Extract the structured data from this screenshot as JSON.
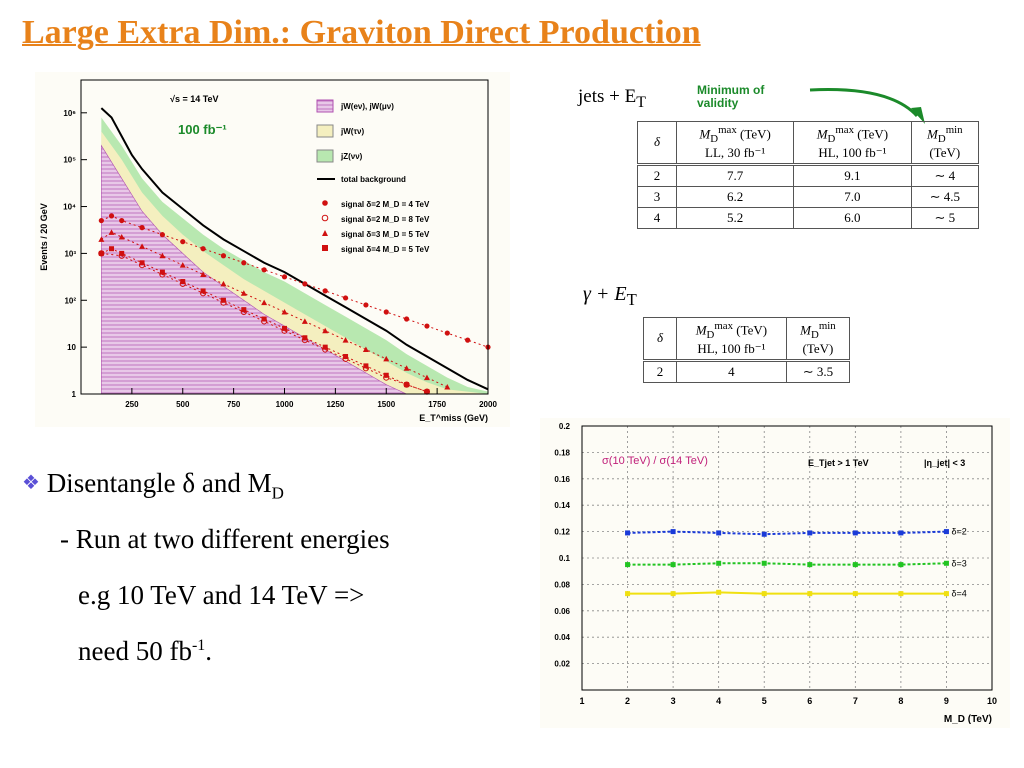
{
  "slide": {
    "title": "Large Extra Dim.: Graviton Direct Production",
    "bullets": {
      "bullet_main": "Disentangle δ and M",
      "bullet_main_sub": "D",
      "line2": "- Run at two different energies",
      "line3": "e.g 10 TeV and 14 TeV =>",
      "line4_pre": "need 50 fb",
      "line4_sup": "-1",
      "line4_post": "."
    },
    "jets_label": "jets + E",
    "jets_label_sub": "T",
    "validity_note": [
      "Minimum of",
      "validity"
    ],
    "table_jets": {
      "headers": [
        {
          "main": "δ",
          "sub": ""
        },
        {
          "main": "M",
          "sup": "max",
          "sub": "D",
          "unit": "(TeV)",
          "line2": "LL, 30 fb⁻¹"
        },
        {
          "main": "M",
          "sup": "max",
          "sub": "D",
          "unit": "(TeV)",
          "line2": "HL, 100 fb⁻¹"
        },
        {
          "main": "M",
          "sup": "min",
          "sub": "D",
          "unit": "",
          "line2": "(TeV)"
        }
      ],
      "rows": [
        [
          "2",
          "7.7",
          "9.1",
          "∼ 4"
        ],
        [
          "3",
          "6.2",
          "7.0",
          "∼ 4.5"
        ],
        [
          "4",
          "5.2",
          "6.0",
          "∼ 5"
        ]
      ]
    },
    "gamma_label": "γ + E",
    "gamma_label_sub": "T",
    "table_gamma": {
      "headers": [
        {
          "main": "δ"
        },
        {
          "main": "M",
          "sup": "max",
          "sub": "D",
          "unit": "(TeV)",
          "line2": "HL, 100 fb⁻¹"
        },
        {
          "main": "M",
          "sup": "min",
          "sub": "D",
          "unit": "",
          "line2": "(TeV)"
        }
      ],
      "rows": [
        [
          "2",
          "4",
          "∼ 3.5"
        ]
      ]
    }
  },
  "chart_data": [
    {
      "type": "line",
      "title": "",
      "annotations": [
        "√s = 14 TeV",
        "100 fb⁻¹"
      ],
      "xlabel": "E_T^miss (GeV)",
      "ylabel": "Events / 20 GeV",
      "xlim": [
        0,
        2000
      ],
      "ylim_log10": [
        0,
        6.7
      ],
      "log_y": true,
      "x_ticks": [
        250,
        500,
        750,
        1000,
        1250,
        1500,
        1750,
        2000
      ],
      "y_tick_labels": [
        "1",
        "10",
        "10²",
        "10³",
        "10⁴",
        "10⁵",
        "10⁶"
      ],
      "legend_position": "top-right",
      "legend": [
        {
          "label": "jW(eν), jW(μν)",
          "kind": "hatch",
          "color": "#c878c8"
        },
        {
          "label": "jW(τν)",
          "kind": "box",
          "color": "#f4efbf"
        },
        {
          "label": "jZ(νν)",
          "kind": "box",
          "color": "#b8e8b0"
        },
        {
          "label": "total background",
          "kind": "line",
          "color": "#000000"
        },
        {
          "label": "signal δ=2  M_D = 4 TeV",
          "kind": "dot",
          "color": "#d01010"
        },
        {
          "label": "signal δ=2  M_D = 8 TeV",
          "kind": "circle",
          "color": "#d01010"
        },
        {
          "label": "signal δ=3  M_D = 5 TeV",
          "kind": "triangle",
          "color": "#d01010"
        },
        {
          "label": "signal δ=4  M_D = 5 TeV",
          "kind": "square",
          "color": "#d01010"
        }
      ],
      "series": [
        {
          "name": "total background",
          "x": [
            100,
            150,
            200,
            250,
            300,
            400,
            500,
            600,
            700,
            800,
            900,
            1000,
            1100,
            1200,
            1300,
            1400,
            1500,
            1600,
            1700,
            1800,
            1900,
            2000
          ],
          "log10_y": [
            6.1,
            5.9,
            5.5,
            5.1,
            4.8,
            4.3,
            3.95,
            3.6,
            3.3,
            3.05,
            2.8,
            2.6,
            2.35,
            2.1,
            1.85,
            1.6,
            1.35,
            1.05,
            0.8,
            0.55,
            0.3,
            0.1
          ]
        },
        {
          "name": "jZ(νν)",
          "x": [
            100,
            200,
            300,
            400,
            500,
            600,
            700,
            800,
            900,
            1000,
            1100,
            1200,
            1300,
            1400,
            1500,
            1600,
            1700,
            1800,
            1900,
            2000
          ],
          "log10_y": [
            5.9,
            5.3,
            4.6,
            4.1,
            3.75,
            3.4,
            3.1,
            2.85,
            2.6,
            2.4,
            2.15,
            1.9,
            1.65,
            1.4,
            1.15,
            0.85,
            0.6,
            0.35,
            0.15,
            0.05
          ]
        },
        {
          "name": "jW(τν)",
          "x": [
            100,
            200,
            300,
            400,
            500,
            600,
            700,
            800,
            900,
            1000,
            1100,
            1200,
            1300,
            1400,
            1500,
            1600,
            1700,
            1800,
            1900,
            2000
          ],
          "log10_y": [
            5.6,
            5.0,
            4.3,
            3.8,
            3.4,
            3.05,
            2.75,
            2.45,
            2.2,
            1.95,
            1.7,
            1.45,
            1.2,
            0.95,
            0.7,
            0.45,
            0.25,
            0.1,
            0.05,
            0.0
          ]
        },
        {
          "name": "jW(eν), jW(μν)",
          "x": [
            100,
            200,
            300,
            400,
            500,
            600,
            700,
            800,
            900,
            1000,
            1100,
            1200,
            1300,
            1400,
            1500,
            1600
          ],
          "log10_y": [
            5.3,
            4.6,
            3.9,
            3.4,
            3.0,
            2.6,
            2.3,
            2.0,
            1.7,
            1.45,
            1.2,
            0.95,
            0.7,
            0.45,
            0.2,
            0.0
          ]
        },
        {
          "name": "signal δ=2  M_D = 4 TeV",
          "x": [
            100,
            150,
            200,
            300,
            400,
            500,
            600,
            700,
            800,
            900,
            1000,
            1100,
            1200,
            1300,
            1400,
            1500,
            1600,
            1700,
            1800,
            1900,
            2000
          ],
          "log10_y": [
            3.7,
            3.8,
            3.7,
            3.55,
            3.4,
            3.25,
            3.1,
            2.95,
            2.8,
            2.65,
            2.5,
            2.35,
            2.2,
            2.05,
            1.9,
            1.75,
            1.6,
            1.45,
            1.3,
            1.15,
            1.0
          ]
        },
        {
          "name": "signal δ=2  M_D = 8 TeV",
          "x": [
            100,
            200,
            300,
            400,
            500,
            600,
            700,
            800,
            900,
            1000,
            1100,
            1200,
            1300,
            1400,
            1500,
            1600,
            1700
          ],
          "log10_y": [
            3.0,
            2.95,
            2.75,
            2.55,
            2.35,
            2.15,
            1.95,
            1.75,
            1.55,
            1.35,
            1.15,
            0.95,
            0.75,
            0.55,
            0.35,
            0.2,
            0.05
          ]
        },
        {
          "name": "signal δ=3  M_D = 5 TeV",
          "x": [
            100,
            150,
            200,
            300,
            400,
            500,
            600,
            700,
            800,
            900,
            1000,
            1100,
            1200,
            1300,
            1400,
            1500,
            1600,
            1700,
            1800
          ],
          "log10_y": [
            3.3,
            3.45,
            3.35,
            3.15,
            2.95,
            2.75,
            2.55,
            2.35,
            2.15,
            1.95,
            1.75,
            1.55,
            1.35,
            1.15,
            0.95,
            0.75,
            0.55,
            0.35,
            0.15
          ]
        },
        {
          "name": "signal δ=4  M_D = 5 TeV",
          "x": [
            100,
            150,
            200,
            300,
            400,
            500,
            600,
            700,
            800,
            900,
            1000,
            1100,
            1200,
            1300,
            1400,
            1500,
            1600,
            1700
          ],
          "log10_y": [
            3.0,
            3.1,
            3.0,
            2.8,
            2.6,
            2.4,
            2.2,
            2.0,
            1.8,
            1.6,
            1.4,
            1.2,
            1.0,
            0.8,
            0.6,
            0.4,
            0.2,
            0.05
          ]
        }
      ]
    },
    {
      "type": "line",
      "title": "σ(10 TeV) / σ(14 TeV)",
      "annotations": [
        "E_Tjet > 1 TeV",
        "|η_jet| < 3"
      ],
      "xlabel": "M_D (TeV)",
      "ylabel": "",
      "xlim": [
        1,
        10
      ],
      "ylim": [
        0,
        0.2
      ],
      "grid": true,
      "x_ticks": [
        1,
        2,
        3,
        4,
        5,
        6,
        7,
        8,
        9,
        10
      ],
      "y_ticks": [
        0.02,
        0.04,
        0.06,
        0.08,
        0.1,
        0.12,
        0.14,
        0.16,
        0.18,
        0.2
      ],
      "series": [
        {
          "name": "δ=2",
          "color": "#1a3ad8",
          "x": [
            2,
            3,
            4,
            5,
            6,
            7,
            8,
            9
          ],
          "y": [
            0.119,
            0.12,
            0.119,
            0.118,
            0.119,
            0.119,
            0.119,
            0.12
          ]
        },
        {
          "name": "δ=3",
          "color": "#22c422",
          "x": [
            2,
            3,
            4,
            5,
            6,
            7,
            8,
            9
          ],
          "y": [
            0.095,
            0.095,
            0.096,
            0.096,
            0.095,
            0.095,
            0.095,
            0.096
          ]
        },
        {
          "name": "δ=4",
          "color": "#f0e010",
          "x": [
            2,
            3,
            4,
            5,
            6,
            7,
            8,
            9
          ],
          "y": [
            0.073,
            0.073,
            0.074,
            0.073,
            0.073,
            0.073,
            0.073,
            0.073
          ]
        }
      ]
    }
  ]
}
